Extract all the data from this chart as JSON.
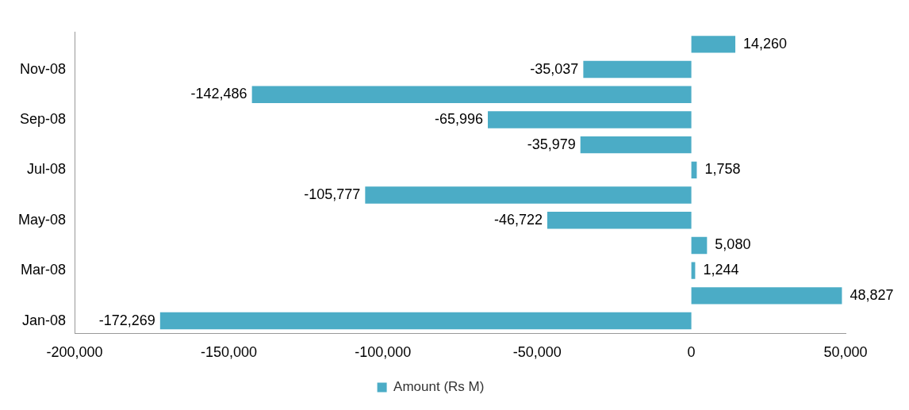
{
  "chart_data": {
    "type": "bar",
    "orientation": "horizontal",
    "categories": [
      null,
      "Nov-08",
      null,
      "Sep-08",
      null,
      "Jul-08",
      null,
      "May-08",
      null,
      "Mar-08",
      null,
      "Jan-08"
    ],
    "series": [
      {
        "name": "Amount (Rs M)",
        "color": "#4bacc6",
        "values": [
          14260,
          -35037,
          -142486,
          -65996,
          -35979,
          1758,
          -105777,
          -46722,
          5080,
          1244,
          48827,
          -172269
        ],
        "value_labels": [
          "14,260",
          "-35,037",
          "-142,486",
          "-65,996",
          "-35,979",
          "1,758",
          "-105,777",
          "-46,722",
          "5,080",
          "1,244",
          "48,827",
          "-172,269"
        ]
      }
    ],
    "xlim": [
      -200000,
      50000
    ],
    "xticks": [
      {
        "value": -200000,
        "label": "-200,000"
      },
      {
        "value": -150000,
        "label": "-150,000"
      },
      {
        "value": -100000,
        "label": "-100,000"
      },
      {
        "value": -50000,
        "label": "-50,000"
      },
      0,
      {
        "value": 50000,
        "label": "50,000"
      }
    ],
    "grid": false,
    "legend": "bottom"
  }
}
